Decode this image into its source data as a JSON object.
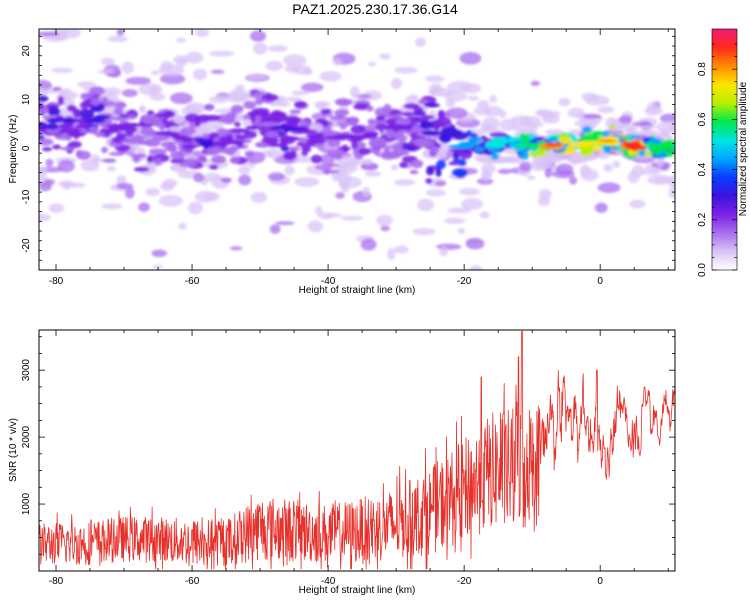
{
  "title": "PAZ1.2025.230.17.36.G14",
  "colors": {
    "snr_line": "#e8302a",
    "frame": "#000000"
  },
  "colormap": [
    "#ffffff",
    "#d9c3f7",
    "#a86ef0",
    "#7a22e6",
    "#3b12e0",
    "#0a3cff",
    "#00a6ff",
    "#00e5e0",
    "#00e84a",
    "#b8f000",
    "#ffe400",
    "#ff8a00",
    "#ff2a1a",
    "#ee1a7a"
  ],
  "chart_data": [
    {
      "type": "heatmap",
      "xlabel": "Height of straight line (km)",
      "ylabel": "Frequency (Hz)",
      "xlim": [
        -82.5,
        11
      ],
      "ylim": [
        -25,
        24.5
      ],
      "xticks": [
        "-80",
        "-60",
        "-40",
        "-20",
        "0"
      ],
      "xtick_values": [
        -80,
        -60,
        -40,
        -20,
        0
      ],
      "yticks": [
        "-20",
        "-10",
        "0",
        "10",
        "20"
      ],
      "ytick_values": [
        -20,
        -10,
        0,
        10,
        20
      ],
      "colorbar": {
        "label": "Normalized spectral amplitude",
        "range": [
          0,
          0.96
        ],
        "ticks": [
          "0.0",
          "0.2",
          "0.4",
          "0.6",
          "0.8"
        ],
        "tick_values": [
          0,
          0.2,
          0.4,
          0.6,
          0.8
        ]
      },
      "description_of_signal": [
        {
          "height_km": -79,
          "frequency_hz": 5.5,
          "amplitude": 0.3
        },
        {
          "height_km": -78,
          "frequency_hz": 3,
          "amplitude": 0.25
        },
        {
          "height_km": -74,
          "frequency_hz": 6,
          "amplitude": 0.28
        },
        {
          "height_km": -72,
          "frequency_hz": 3.5,
          "amplitude": 0.22
        },
        {
          "height_km": -70,
          "frequency_hz": 5,
          "amplitude": 0.24
        },
        {
          "height_km": -68,
          "frequency_hz": 1.5,
          "amplitude": 0.18
        },
        {
          "height_km": -64,
          "frequency_hz": 3,
          "amplitude": 0.26
        },
        {
          "height_km": -62,
          "frequency_hz": 2.5,
          "amplitude": 0.2
        },
        {
          "height_km": -58,
          "frequency_hz": 1,
          "amplitude": 0.28
        },
        {
          "height_km": -55,
          "frequency_hz": 1.5,
          "amplitude": 0.22
        },
        {
          "height_km": -52,
          "frequency_hz": 4,
          "amplitude": 0.2
        },
        {
          "height_km": -50,
          "frequency_hz": 7,
          "amplitude": 0.25
        },
        {
          "height_km": -46,
          "frequency_hz": 4.5,
          "amplitude": 0.3
        },
        {
          "height_km": -43,
          "frequency_hz": 3,
          "amplitude": 0.22
        },
        {
          "height_km": -38,
          "frequency_hz": 2,
          "amplitude": 0.2
        },
        {
          "height_km": -34,
          "frequency_hz": 3,
          "amplitude": 0.22
        },
        {
          "height_km": -30,
          "frequency_hz": 4,
          "amplitude": 0.24
        },
        {
          "height_km": -25,
          "frequency_hz": 3,
          "amplitude": 0.32
        },
        {
          "height_km": -20,
          "frequency_hz": 0.5,
          "amplitude": 0.45
        },
        {
          "height_km": -15,
          "frequency_hz": 1,
          "amplitude": 0.5
        },
        {
          "height_km": -10,
          "frequency_hz": 1,
          "amplitude": 0.6
        },
        {
          "height_km": -7,
          "frequency_hz": 0.8,
          "amplitude": 0.85
        },
        {
          "height_km": -3,
          "frequency_hz": 1,
          "amplitude": 0.75
        },
        {
          "height_km": 1,
          "frequency_hz": 1.5,
          "amplitude": 0.8
        },
        {
          "height_km": 5,
          "frequency_hz": 0.5,
          "amplitude": 0.9
        },
        {
          "height_km": 9,
          "frequency_hz": 0.5,
          "amplitude": 0.6
        }
      ]
    },
    {
      "type": "line",
      "xlabel": "Height of straight line (km)",
      "ylabel": "SNR (10 * v/v)",
      "xlim": [
        -82.5,
        11
      ],
      "ylim": [
        0,
        3600
      ],
      "xticks": [
        "-80",
        "-60",
        "-40",
        "-20",
        "0"
      ],
      "xtick_values": [
        -80,
        -60,
        -40,
        -20,
        0
      ],
      "yticks": [
        "1000",
        "2000",
        "3000"
      ],
      "ytick_values": [
        1000,
        2000,
        3000
      ],
      "series": [
        {
          "trend": [
            [
              -82.5,
              400
            ],
            [
              -75,
              420
            ],
            [
              -70,
              480
            ],
            [
              -65,
              470
            ],
            [
              -60,
              430
            ],
            [
              -55,
              420
            ],
            [
              -50,
              650
            ],
            [
              -45,
              600
            ],
            [
              -40,
              550
            ],
            [
              -35,
              600
            ],
            [
              -30,
              700
            ],
            [
              -25,
              900
            ],
            [
              -20,
              1200
            ],
            [
              -16,
              1500
            ],
            [
              -13,
              1500
            ],
            [
              -11,
              1550
            ],
            [
              -8,
              2000
            ],
            [
              -5,
              2200
            ],
            [
              -2,
              2100
            ],
            [
              0,
              1900
            ],
            [
              3,
              2100
            ],
            [
              6,
              2300
            ],
            [
              9,
              2400
            ],
            [
              11,
              2400
            ]
          ],
          "spread": [
            [
              -82.5,
              350
            ],
            [
              -70,
              380
            ],
            [
              -55,
              400
            ],
            [
              -50,
              550
            ],
            [
              -40,
              500
            ],
            [
              -30,
              600
            ],
            [
              -22,
              800
            ],
            [
              -15,
              1000
            ],
            [
              -11,
              1100
            ],
            [
              -8,
              600
            ],
            [
              0,
              450
            ],
            [
              11,
              350
            ]
          ],
          "peaks": [
            [
              -11.5,
              3580
            ],
            [
              -17.5,
              2900
            ],
            [
              -12,
              3200
            ],
            [
              -0.5,
              3000
            ],
            [
              6.5,
              2750
            ]
          ]
        }
      ]
    }
  ]
}
